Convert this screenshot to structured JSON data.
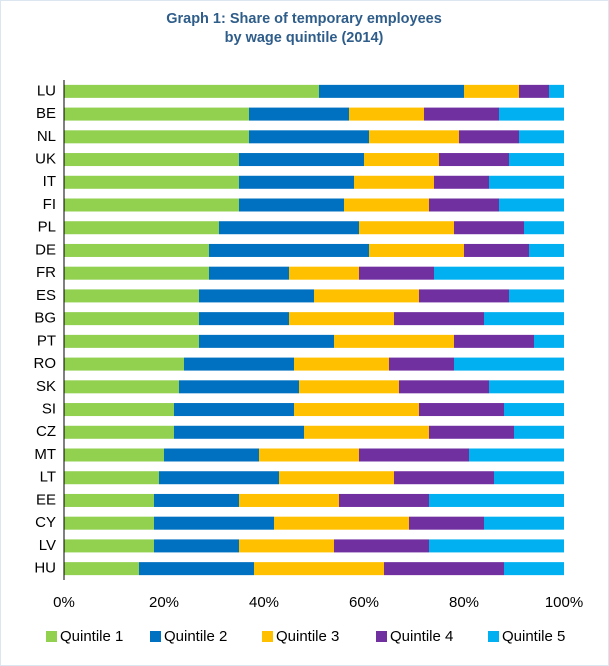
{
  "chart_data": {
    "type": "bar",
    "orientation": "horizontal",
    "stacked": true,
    "title": [
      "Graph 1: Share of temporary employees",
      "by wage quintile (2014)"
    ],
    "categories": [
      "LU",
      "BE",
      "NL",
      "UK",
      "IT",
      "FI",
      "PL",
      "DE",
      "FR",
      "ES",
      "BG",
      "PT",
      "RO",
      "SK",
      "SI",
      "CZ",
      "MT",
      "LT",
      "EE",
      "CY",
      "LV",
      "HU"
    ],
    "series": [
      {
        "name": "Quintile 1",
        "color": "#92d050",
        "values": [
          51,
          37,
          37,
          35,
          35,
          35,
          31,
          29,
          29,
          27,
          27,
          27,
          24,
          23,
          22,
          22,
          20,
          19,
          18,
          18,
          18,
          15
        ]
      },
      {
        "name": "Quintile 2",
        "color": "#0070c0",
        "values": [
          29,
          20,
          24,
          25,
          23,
          21,
          28,
          32,
          16,
          23,
          18,
          27,
          22,
          24,
          24,
          26,
          19,
          24,
          17,
          24,
          17,
          23
        ]
      },
      {
        "name": "Quintile 3",
        "color": "#ffc000",
        "values": [
          11,
          15,
          18,
          15,
          16,
          17,
          19,
          19,
          14,
          21,
          21,
          24,
          19,
          20,
          25,
          25,
          20,
          23,
          20,
          27,
          19,
          26
        ]
      },
      {
        "name": "Quintile 4",
        "color": "#7030a0",
        "values": [
          6,
          15,
          12,
          14,
          11,
          14,
          14,
          13,
          15,
          18,
          18,
          16,
          13,
          18,
          17,
          17,
          22,
          20,
          18,
          15,
          19,
          24
        ]
      },
      {
        "name": "Quintile 5",
        "color": "#00b0f0",
        "values": [
          3,
          13,
          9,
          11,
          15,
          13,
          8,
          7,
          26,
          11,
          16,
          6,
          22,
          15,
          12,
          10,
          19,
          14,
          27,
          16,
          27,
          12
        ]
      }
    ],
    "xlim": [
      0,
      100
    ],
    "xticks": [
      {
        "value": 0,
        "label": "0%"
      },
      {
        "value": 20,
        "label": "20%"
      },
      {
        "value": 40,
        "label": "40%"
      },
      {
        "value": 60,
        "label": "60%"
      },
      {
        "value": 80,
        "label": "80%"
      },
      {
        "value": 100,
        "label": "100%"
      }
    ],
    "legend": "bottom"
  }
}
